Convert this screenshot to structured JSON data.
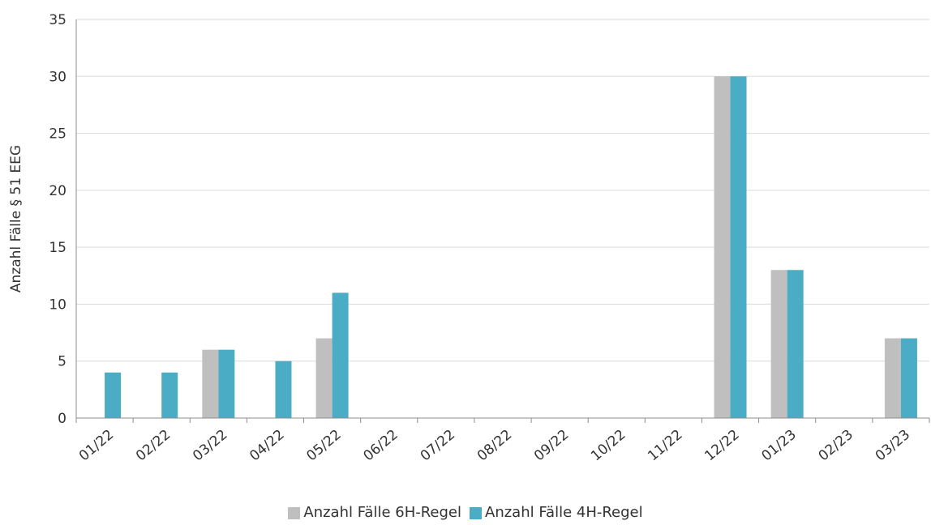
{
  "chart_data": {
    "type": "bar",
    "title": "",
    "xlabel": "",
    "ylabel": "Anzahl Fälle § 51 EEG",
    "ylim": [
      0,
      35
    ],
    "yticks": [
      0,
      5,
      10,
      15,
      20,
      25,
      30,
      35
    ],
    "grid": true,
    "legend_position": "bottom",
    "categories": [
      "01/22",
      "02/22",
      "03/22",
      "04/22",
      "05/22",
      "06/22",
      "07/22",
      "08/22",
      "09/22",
      "10/22",
      "11/22",
      "12/22",
      "01/23",
      "02/23",
      "03/23"
    ],
    "series": [
      {
        "name": "Anzahl Fälle 6H-Regel",
        "color": "#bfbfbf",
        "values": [
          0,
          0,
          6,
          0,
          7,
          0,
          0,
          0,
          0,
          0,
          0,
          30,
          13,
          0,
          7
        ]
      },
      {
        "name": "Anzahl Fälle 4H-Regel",
        "color": "#4bacc6",
        "values": [
          4,
          4,
          6,
          5,
          11,
          0,
          0,
          0,
          0,
          0,
          0,
          30,
          13,
          0,
          7
        ]
      }
    ]
  }
}
